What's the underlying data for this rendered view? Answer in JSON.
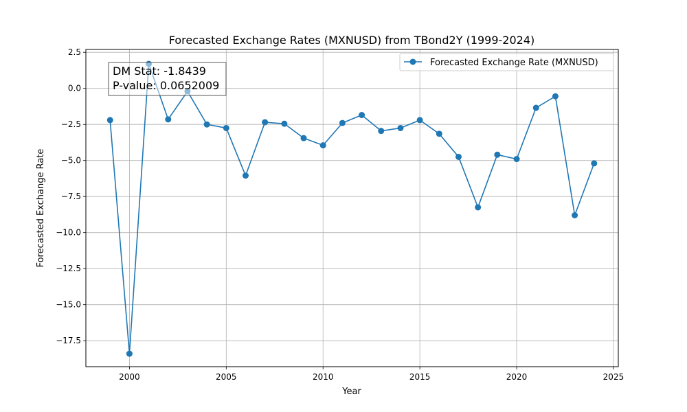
{
  "chart_data": {
    "type": "line",
    "title": "Forecasted Exchange Rates (MXNUSD) from TBond2Y (1999-2024)",
    "xlabel": "Year",
    "ylabel": "Forecasted Exchange Rate",
    "xlim": [
      1997.75,
      2025.25
    ],
    "ylim": [
      -19.3,
      2.7
    ],
    "xticks": [
      2000,
      2005,
      2010,
      2015,
      2020,
      2025
    ],
    "yticks": [
      2.5,
      0.0,
      -2.5,
      -5.0,
      -7.5,
      -10.0,
      -12.5,
      -15.0,
      -17.5
    ],
    "ytick_labels": [
      "2.5",
      "0.0",
      "−2.5",
      "−5.0",
      "−7.5",
      "−10.0",
      "−12.5",
      "−15.0",
      "−17.5"
    ],
    "grid": true,
    "legend_position": "top-right",
    "series": [
      {
        "name": "Forecasted Exchange Rate (MXNUSD)",
        "color": "#1f77b4",
        "marker": "circle",
        "x": [
          1999,
          2000,
          2001,
          2002,
          2003,
          2004,
          2005,
          2006,
          2007,
          2008,
          2009,
          2010,
          2011,
          2012,
          2013,
          2014,
          2015,
          2016,
          2017,
          2018,
          2019,
          2020,
          2021,
          2022,
          2023,
          2024
        ],
        "y": [
          -2.2,
          -18.4,
          1.7,
          -2.15,
          -0.2,
          -2.5,
          -2.75,
          -6.05,
          -2.35,
          -2.45,
          -3.45,
          -3.95,
          -2.4,
          -1.85,
          -2.95,
          -2.75,
          -2.2,
          -3.15,
          -4.75,
          -8.25,
          -4.6,
          -4.9,
          -1.35,
          -0.55,
          -8.8,
          -5.2
        ]
      }
    ],
    "annotation": {
      "lines": [
        "DM Stat: -1.8439",
        "P-value: 0.0652009"
      ]
    }
  }
}
